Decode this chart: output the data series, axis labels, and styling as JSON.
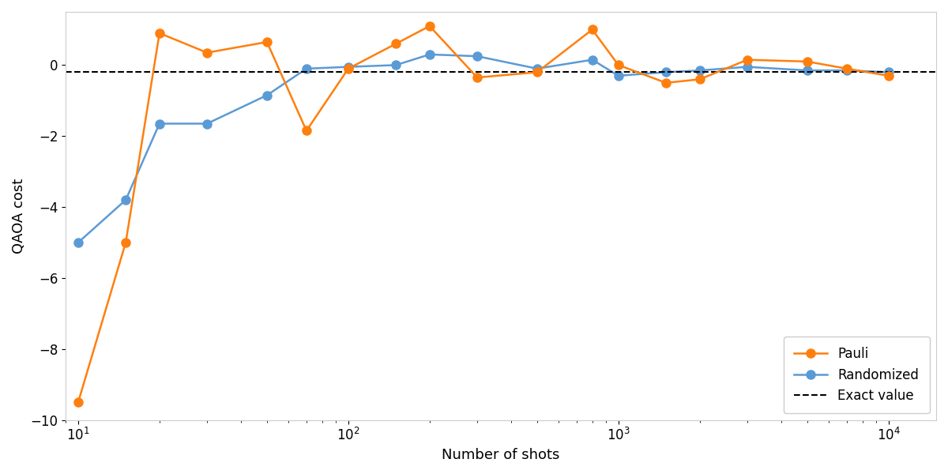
{
  "pauli_x": [
    10,
    15,
    20,
    30,
    50,
    70,
    100,
    150,
    200,
    300,
    500,
    800,
    1000,
    1500,
    2000,
    3000,
    5000,
    7000,
    10000
  ],
  "pauli_y": [
    -9.5,
    -5.0,
    0.9,
    0.35,
    0.65,
    -1.85,
    -0.1,
    0.6,
    1.1,
    -0.35,
    -0.2,
    1.0,
    0.0,
    -0.5,
    -0.4,
    0.15,
    0.1,
    -0.1,
    -0.3
  ],
  "rand_x": [
    10,
    15,
    20,
    30,
    50,
    70,
    100,
    150,
    200,
    300,
    500,
    800,
    1000,
    1500,
    2000,
    3000,
    5000,
    7000,
    10000
  ],
  "rand_y": [
    -5.0,
    -3.8,
    -1.65,
    -1.65,
    -0.85,
    -0.1,
    -0.05,
    0.0,
    0.3,
    0.25,
    -0.1,
    0.15,
    -0.3,
    -0.2,
    -0.15,
    -0.05,
    -0.15,
    -0.15,
    -0.2
  ],
  "exact_value": -0.2,
  "pauli_color": "#ff7f0e",
  "rand_color": "#5b9bd5",
  "exact_color": "#000000",
  "xlabel": "Number of shots",
  "ylabel": "QAOA cost",
  "pauli_label": "Pauli",
  "rand_label": "Randomized",
  "exact_label": "Exact value",
  "ylim_min": -10.0,
  "ylim_max": 1.5,
  "figure_width": 12.0,
  "figure_height": 6.0,
  "dpi": 100,
  "legend_loc": "lower right",
  "marker_size": 8,
  "linewidth": 1.8
}
